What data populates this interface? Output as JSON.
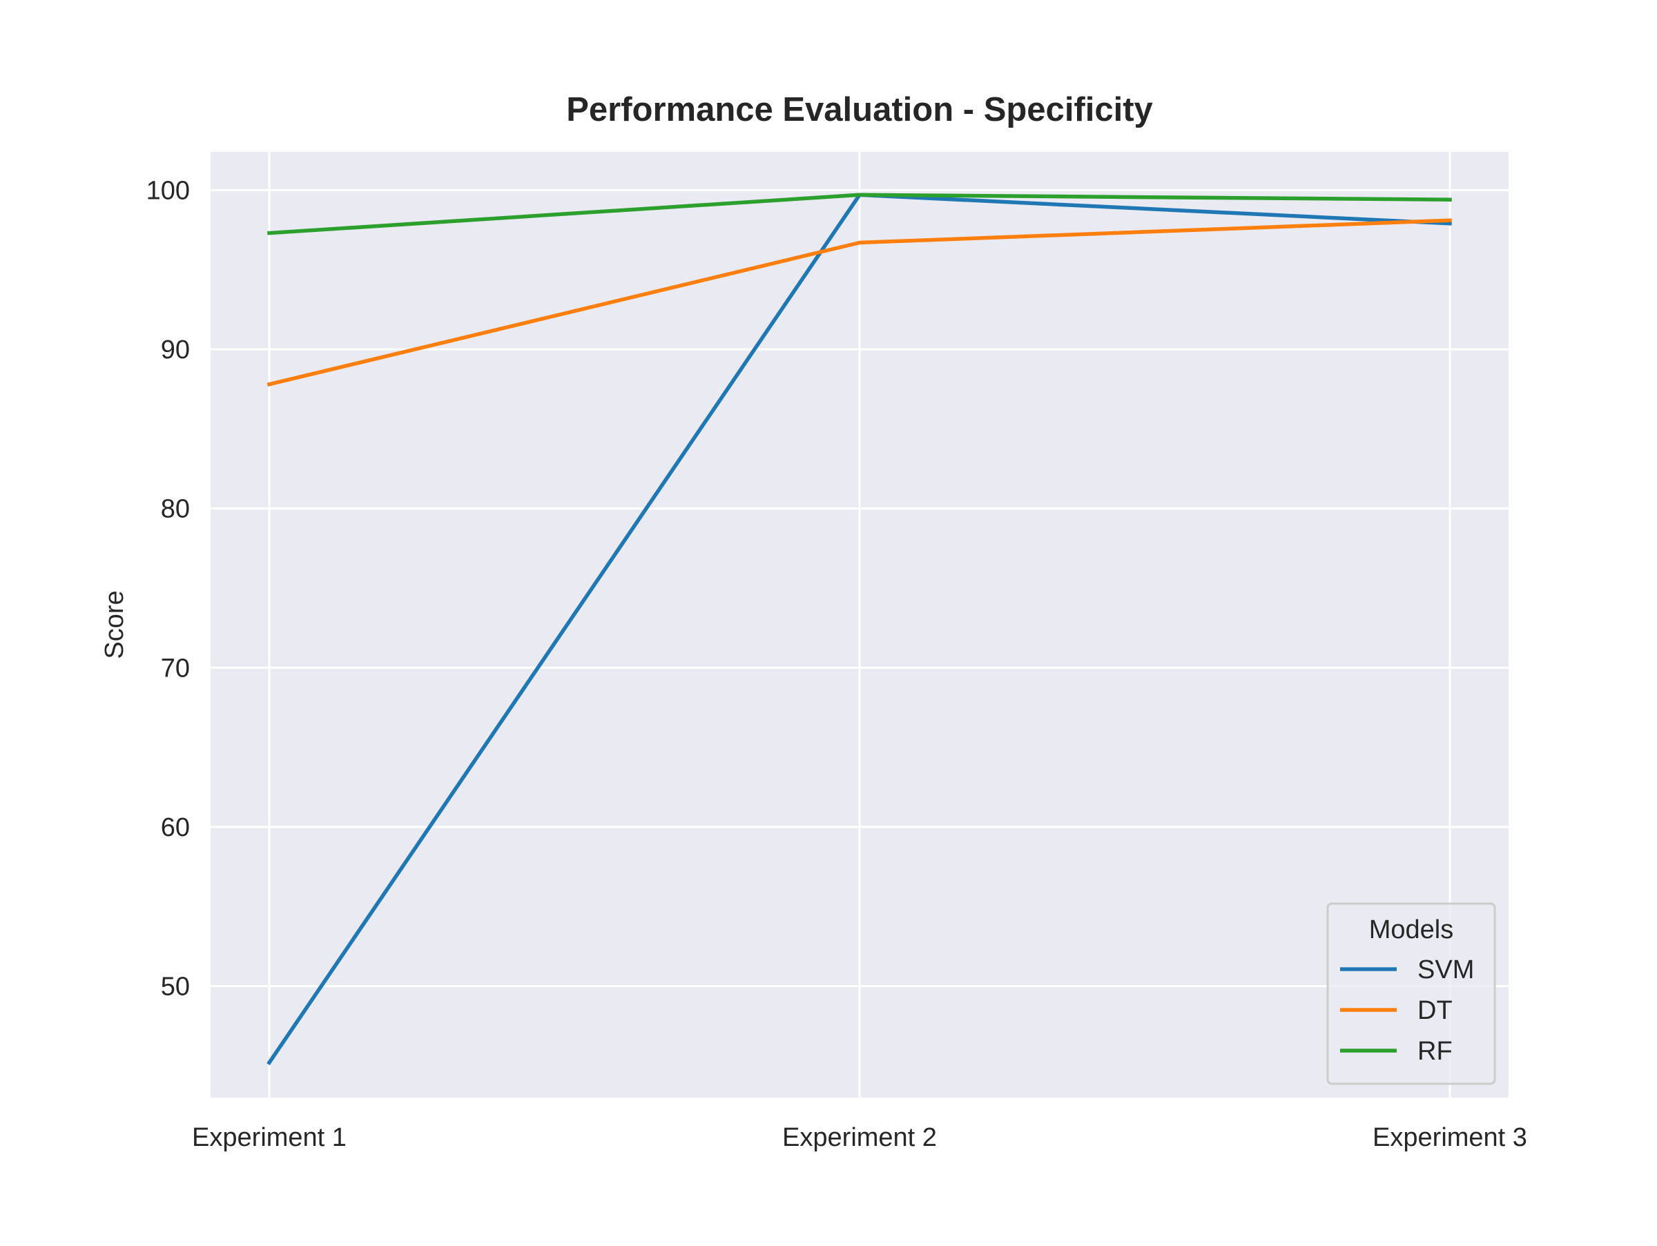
{
  "chart_data": {
    "type": "line",
    "title": "Performance Evaluation - Specificity",
    "xlabel": "",
    "ylabel": "Score",
    "categories": [
      "Experiment 1",
      "Experiment 2",
      "Experiment 3"
    ],
    "y_ticks": [
      50,
      60,
      70,
      80,
      90,
      100
    ],
    "ylim": [
      43,
      102.4
    ],
    "grid": true,
    "legend": {
      "title": "Models",
      "placement": "lower-right"
    },
    "series": [
      {
        "name": "SVM",
        "color": "#1f77b4",
        "values": [
          45.2,
          99.7,
          97.9
        ]
      },
      {
        "name": "DT",
        "color": "#ff7f0e",
        "values": [
          87.8,
          96.7,
          98.1
        ]
      },
      {
        "name": "RF",
        "color": "#2ca02c",
        "values": [
          97.3,
          99.7,
          99.4
        ]
      }
    ]
  }
}
